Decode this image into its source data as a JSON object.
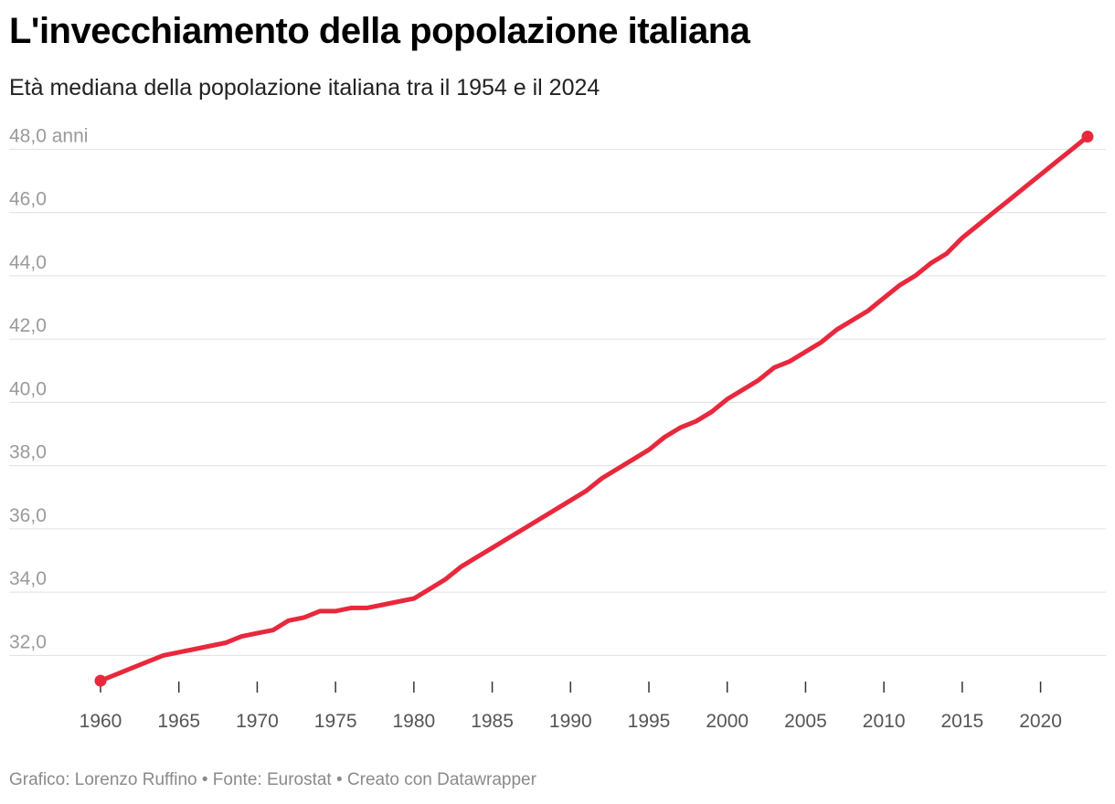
{
  "title": "L'invecchiamento della popolazione italiana",
  "subtitle": "Età mediana della popolazione italiana tra il 1954 e il 2024",
  "footer": "Grafico: Lorenzo Ruffino • Fonte: Eurostat • Creato con Datawrapper",
  "colors": {
    "line": "#e8283c",
    "grid": "#e0e0e0",
    "axis_text": "#9a9a9a",
    "tick": "#333333"
  },
  "chart_data": {
    "type": "line",
    "title": "L'invecchiamento della popolazione italiana",
    "subtitle": "Età mediana della popolazione italiana tra il 1954 e il 2024",
    "xlabel": "",
    "ylabel": "",
    "y_unit_label": "anni",
    "ylim": [
      31.0,
      48.3
    ],
    "xlim": [
      1960,
      2023
    ],
    "yticks": [
      "32,0",
      "34,0",
      "36,0",
      "38,0",
      "40,0",
      "42,0",
      "44,0",
      "46,0",
      "48,0"
    ],
    "ytick_values": [
      32,
      34,
      36,
      38,
      40,
      42,
      44,
      46,
      48
    ],
    "xticks": [
      "1960",
      "1965",
      "1970",
      "1975",
      "1980",
      "1985",
      "1990",
      "1995",
      "2000",
      "2005",
      "2010",
      "2015",
      "2020"
    ],
    "xtick_values": [
      1960,
      1965,
      1970,
      1975,
      1980,
      1985,
      1990,
      1995,
      2000,
      2005,
      2010,
      2015,
      2020
    ],
    "grid": true,
    "series": [
      {
        "name": "Età mediana",
        "x": [
          1960,
          1961,
          1962,
          1963,
          1964,
          1965,
          1966,
          1967,
          1968,
          1969,
          1970,
          1971,
          1972,
          1973,
          1974,
          1975,
          1976,
          1977,
          1978,
          1979,
          1980,
          1981,
          1982,
          1983,
          1984,
          1985,
          1986,
          1987,
          1988,
          1989,
          1990,
          1991,
          1992,
          1993,
          1994,
          1995,
          1996,
          1997,
          1998,
          1999,
          2000,
          2001,
          2002,
          2003,
          2004,
          2005,
          2006,
          2007,
          2008,
          2009,
          2010,
          2011,
          2012,
          2013,
          2014,
          2015,
          2016,
          2017,
          2018,
          2019,
          2020,
          2021,
          2022,
          2023
        ],
        "values": [
          31.2,
          31.4,
          31.6,
          31.8,
          32.0,
          32.1,
          32.2,
          32.3,
          32.4,
          32.6,
          32.7,
          32.8,
          33.1,
          33.2,
          33.4,
          33.4,
          33.5,
          33.5,
          33.6,
          33.7,
          33.8,
          34.1,
          34.4,
          34.8,
          35.1,
          35.4,
          35.7,
          36.0,
          36.3,
          36.6,
          36.9,
          37.2,
          37.6,
          37.9,
          38.2,
          38.5,
          38.9,
          39.2,
          39.4,
          39.7,
          40.1,
          40.4,
          40.7,
          41.1,
          41.3,
          41.6,
          41.9,
          42.3,
          42.6,
          42.9,
          43.3,
          43.7,
          44.0,
          44.4,
          44.7,
          45.2,
          45.6,
          46.0,
          46.4,
          46.8,
          47.2,
          47.6,
          48.0,
          48.4
        ]
      }
    ]
  }
}
